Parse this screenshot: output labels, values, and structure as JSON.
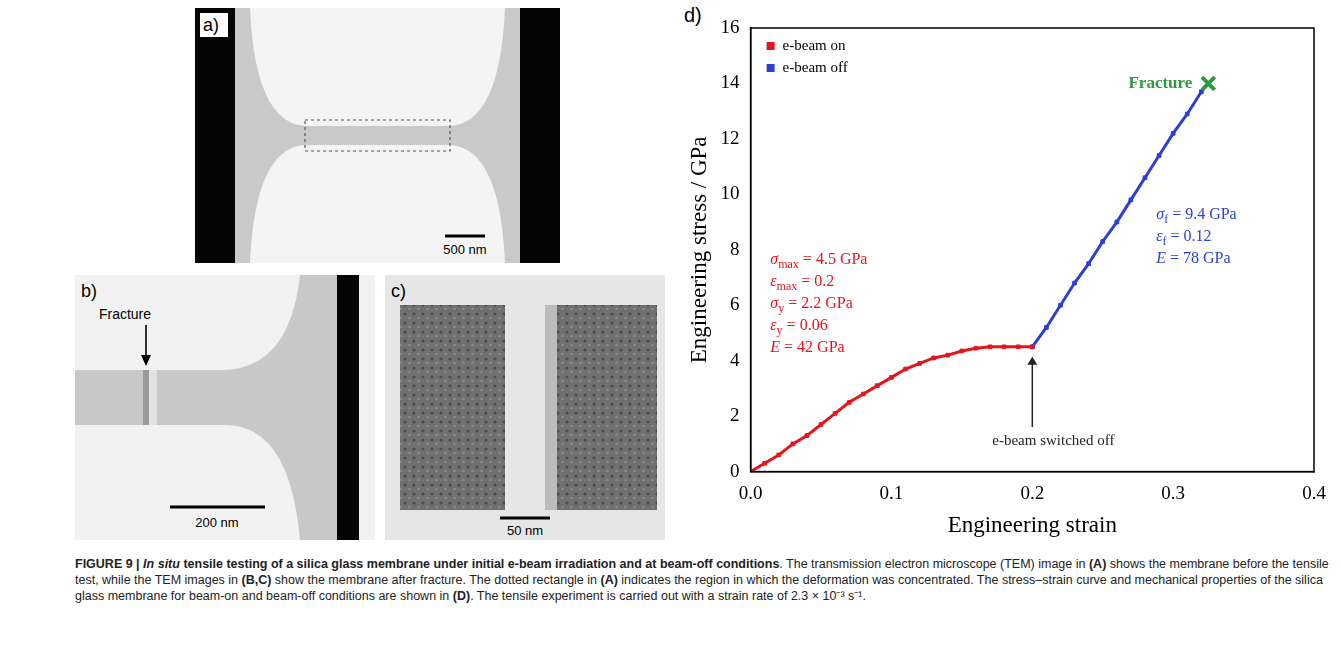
{
  "figure": {
    "panels": [
      {
        "letter": "a)",
        "scale_bar": "500 nm"
      },
      {
        "letter": "b)",
        "scale_bar": "200 nm",
        "label": "Fracture"
      },
      {
        "letter": "c)",
        "scale_bar": "50 nm"
      }
    ],
    "caption": [
      {
        "text": "FIGURE 9 | ",
        "style": "bold"
      },
      {
        "text": "In situ",
        "style": "bold-italic"
      },
      {
        "text": " tensile testing of a silica glass membrane under initial e-beam irradiation and at beam-off conditions",
        "style": "bold"
      },
      {
        "text": ". The transmission electron microscope (TEM) image in ",
        "style": "plain"
      },
      {
        "text": "(A)",
        "style": "bold"
      },
      {
        "text": " shows the membrane before the tensile test, while the TEM images in ",
        "style": "plain"
      },
      {
        "text": "(B,C)",
        "style": "bold"
      },
      {
        "text": " show the membrane after fracture. The dotted rectangle in ",
        "style": "plain"
      },
      {
        "text": "(A)",
        "style": "bold"
      },
      {
        "text": " indicates the region in which the deformation was concentrated. The stress–strain curve and mechanical properties of the silica glass membrane for beam-on and beam-off conditions are shown in ",
        "style": "plain"
      },
      {
        "text": "(D)",
        "style": "bold"
      },
      {
        "text": ". The tensile experiment is carried out with a strain rate of 2.3 × 10⁻³ s⁻¹.",
        "style": "plain"
      }
    ]
  },
  "chart_data": {
    "type": "scatter",
    "panel": "d)",
    "x_label": "Engineering strain",
    "y_label": "Engineering stress / GPa",
    "xlim": [
      0,
      0.4
    ],
    "xticks": [
      {
        "value": 0,
        "label": "0.0"
      },
      0.1,
      0.2,
      0.3,
      0.4
    ],
    "ylim": [
      0,
      16
    ],
    "yticks": [
      0,
      2,
      4,
      6,
      8,
      10,
      12,
      14,
      16
    ],
    "grid": false,
    "legend": "top left",
    "series": [
      {
        "name": "e-beam on",
        "color": "#e8141c",
        "marker": "square",
        "x": [
          0,
          0.01,
          0.02,
          0.03,
          0.04,
          0.05,
          0.06,
          0.07,
          0.08,
          0.09,
          0.1,
          0.11,
          0.12,
          0.13,
          0.14,
          0.15,
          0.16,
          0.17,
          0.18,
          0.19,
          0.2
        ],
        "values": [
          0,
          0.3,
          0.6,
          1.0,
          1.3,
          1.7,
          2.1,
          2.5,
          2.8,
          3.1,
          3.4,
          3.7,
          3.9,
          4.1,
          4.2,
          4.35,
          4.45,
          4.5,
          4.5,
          4.5,
          4.5
        ]
      },
      {
        "name": "e-beam off",
        "color": "#2a3fd8",
        "marker": "square",
        "x": [
          0.2,
          0.21,
          0.22,
          0.23,
          0.24,
          0.25,
          0.26,
          0.27,
          0.28,
          0.29,
          0.3,
          0.31,
          0.32,
          0.325
        ],
        "values": [
          4.5,
          5.2,
          6.0,
          6.8,
          7.5,
          8.3,
          9.0,
          9.8,
          10.6,
          11.4,
          12.2,
          12.9,
          13.7,
          14.0
        ]
      }
    ],
    "fracture": {
      "label": "Fracture",
      "x": 0.325,
      "y": 14.0,
      "color": "#2e9a3e",
      "marker": "x"
    },
    "annotations": [
      {
        "color": "#e8141c",
        "lines": [
          {
            "symbol": "σ",
            "sub": "max",
            "text": " = 4.5 GPa"
          },
          {
            "symbol": "ε",
            "sub": "max",
            "text": " = 0.2"
          },
          {
            "symbol": "σ",
            "sub": "y",
            "text": " = 2.2 GPa"
          },
          {
            "symbol": "ε",
            "sub": "y",
            "text": " = 0.06"
          },
          {
            "symbol": "E",
            "text": " = 42 GPa"
          }
        ]
      },
      {
        "color": "#2a3fd8",
        "lines": [
          {
            "symbol": "σ",
            "sub": "f",
            "text": " = 9.4 GPa"
          },
          {
            "symbol": "ε",
            "sub": "f",
            "text": " = 0.12"
          },
          {
            "symbol": "E",
            "text": " = 78 GPa"
          }
        ]
      }
    ],
    "switch_label": {
      "text": "e-beam switched off",
      "color": "#222222"
    }
  }
}
